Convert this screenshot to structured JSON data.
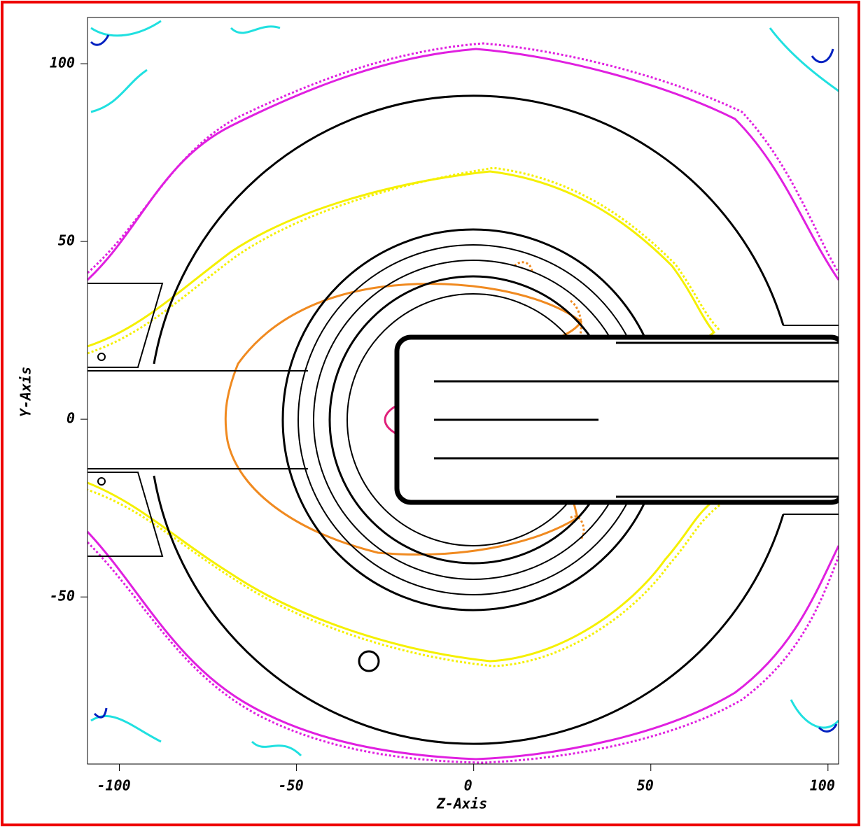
{
  "chart_data": {
    "type": "contour",
    "x_label": "Z-Axis",
    "y_label": "Y-Axis",
    "xlim": [
      -109,
      103
    ],
    "ylim": [
      -97,
      113
    ],
    "xticks": [
      -100,
      -50,
      0,
      50,
      100
    ],
    "yticks": [
      -50,
      0,
      50,
      100
    ]
  }
}
